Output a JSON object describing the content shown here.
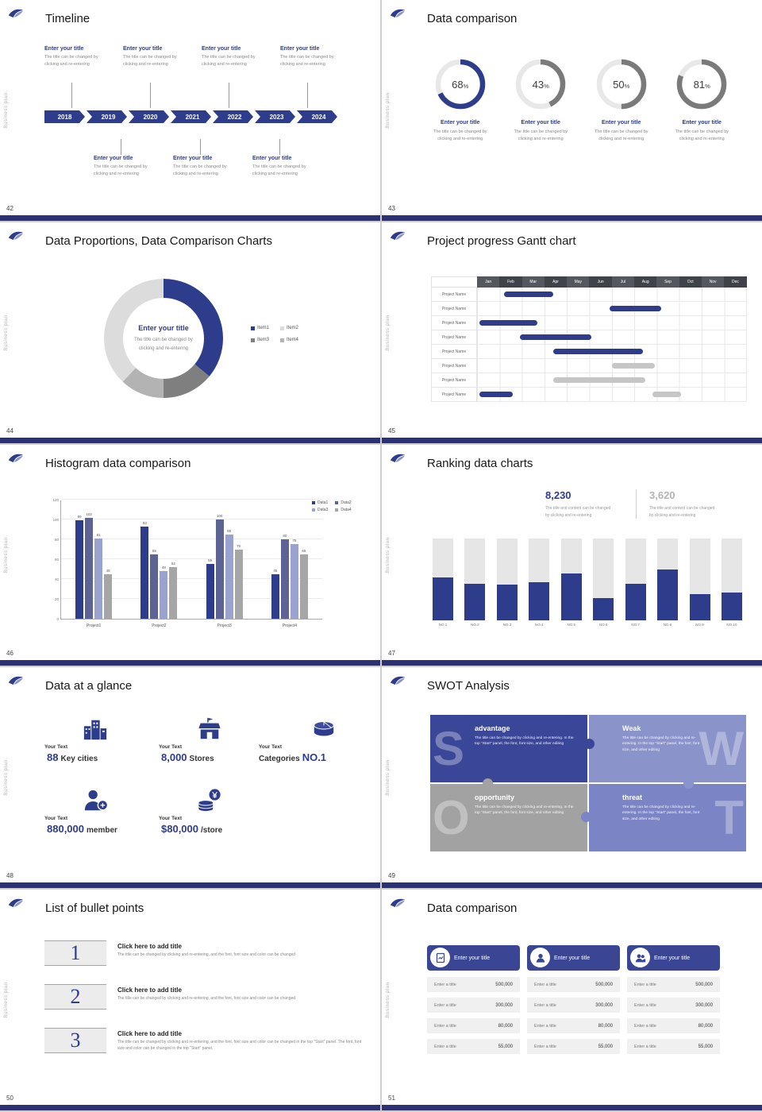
{
  "palette": {
    "accent": "#2e3c8c",
    "accent_bright": "#3a4694",
    "footer_bar": "#2a3176",
    "bar_gray": "#c6c6c6",
    "ring_track": "#e8e8e8",
    "ring_gray": "#7a7a7a",
    "periwinkle": "#8b93cb",
    "swot_gray": "#a2a2a2",
    "swot_blue": "#7b84c4"
  },
  "common": {
    "vertical_text": "Business plan"
  },
  "slides": {
    "timeline": {
      "number": "42",
      "title": "Timeline",
      "item_title": "Enter your title",
      "item_desc": [
        "The title can be changed by",
        "clicking and re-entering"
      ],
      "years": [
        "2018",
        "2019",
        "2020",
        "2021",
        "2022",
        "2023",
        "2024"
      ],
      "top_count": 4,
      "bottom_count": 3
    },
    "rings": {
      "number": "43",
      "title": "Data comparison",
      "item_title": "Enter your title",
      "item_desc": [
        "The title can be changed by",
        "clicking and re-entering"
      ]
    },
    "donut": {
      "number": "44",
      "title": "Data Proportions, Data Comparison Charts",
      "center_title": "Enter your title",
      "center_desc": [
        "The title can be changed by",
        "clicking and re-entering"
      ]
    },
    "gantt": {
      "number": "45",
      "title": "Project progress Gantt chart",
      "row_label": "Project Name"
    },
    "histogram": {
      "number": "46",
      "title": "Histogram data comparison"
    },
    "ranking": {
      "number": "47",
      "title": "Ranking data charts",
      "stats": [
        {
          "value": "8,230"
        },
        {
          "value": "3,620"
        }
      ],
      "stat_desc": [
        "The title and content can be changed",
        "by clicking and re-entering"
      ]
    },
    "glance": {
      "number": "48",
      "title": "Data at a glance",
      "items": [
        {
          "label": "Your Text",
          "prefix": "",
          "big": "88",
          "suffix": "Key cities"
        },
        {
          "label": "Your Text",
          "prefix": "",
          "big": "8,000",
          "suffix": "Stores"
        },
        {
          "label": "Your Text",
          "prefix": "Categories",
          "big": "NO.1",
          "suffix": ""
        },
        {
          "label": "Your Text",
          "prefix": "",
          "big": "880,000",
          "suffix": "member"
        },
        {
          "label": "Your Text",
          "prefix": "",
          "big": "$80,000",
          "suffix": "/store"
        }
      ]
    },
    "swot": {
      "number": "49",
      "title": "SWOT Analysis",
      "quads": [
        {
          "letter": "S",
          "title": "advantage",
          "desc": "The title can be changed by clicking and re-entering. In the top \"Start\" panel, the font, font size, and other editing"
        },
        {
          "letter": "W",
          "title": "Weak",
          "desc": "The title can be changed by clicking and re-entering. In the top \"Start\" panel, the font, font size, and other editing"
        },
        {
          "letter": "O",
          "title": "opportunity",
          "desc": "The title can be changed by clicking and re-entering. In the top \"Start\" panel, the font, font size, and other editing"
        },
        {
          "letter": "T",
          "title": "threat",
          "desc": "The title can be changed by clicking and re-entering. In the top \"Start\" panel, the font, font size, and other editing"
        }
      ]
    },
    "bullets": {
      "number": "50",
      "title": "List of bullet points",
      "items": [
        {
          "num": "1",
          "title": "Click here to add title",
          "desc": "The title can be changed by clicking and re-entering, and the font, font size and color can be changed"
        },
        {
          "num": "2",
          "title": "Click here to add title",
          "desc": "The title can be changed by clicking and re-entering, and the font, font size and color can be changed"
        },
        {
          "num": "3",
          "title": "Click here to add title",
          "desc": "The title can be changed by clicking and re-entering, and the font, font size and color can be changed in the top \"Start\" panel. The font, font size and color can be changed in the top \"Start\" panel."
        }
      ]
    },
    "cards": {
      "number": "51",
      "title": "Data comparison",
      "cards": [
        {
          "icon": "report-icon",
          "title": "Enter your title"
        },
        {
          "icon": "user-icon",
          "title": "Enter your title"
        },
        {
          "icon": "users-icon",
          "title": "Enter your title"
        }
      ],
      "rows": [
        {
          "label": "Enter a title",
          "value": "500,000"
        },
        {
          "label": "Enter a title",
          "value": "300,000"
        },
        {
          "label": "Enter a title",
          "value": "80,000"
        },
        {
          "label": "Enter a title",
          "value": "55,000"
        }
      ]
    }
  },
  "chart_data": {
    "rings": {
      "type": "progress",
      "values_pct": [
        68,
        43,
        50,
        81
      ],
      "colors": [
        "#2e3c8c",
        "#7a7a7a",
        "#7a7a7a",
        "#7a7a7a"
      ],
      "track_color": "#e8e8e8"
    },
    "donut": {
      "type": "pie",
      "segments": [
        {
          "label": "Item1",
          "value": 36,
          "color": "#2e3c8c"
        },
        {
          "label": "Item3",
          "value": 14,
          "color": "#7f7f7f"
        },
        {
          "label": "Item4",
          "value": 12,
          "color": "#b3b3b3"
        },
        {
          "label": "Item2",
          "value": 38,
          "color": "#dcdcdc"
        }
      ],
      "legend_order": [
        "Item1",
        "Item2",
        "Item3",
        "Item4"
      ]
    },
    "gantt": {
      "type": "gantt",
      "months": [
        "Jan",
        "Feb",
        "Mar",
        "Apr",
        "May",
        "Jun",
        "Jul",
        "Aug",
        "Sep",
        "Oct",
        "Nov",
        "Dec"
      ],
      "row_count": 8,
      "bars": [
        {
          "row": 0,
          "start": 1.2,
          "end": 3.4,
          "color": "#2e3c8c"
        },
        {
          "row": 1,
          "start": 5.9,
          "end": 8.2,
          "color": "#2e3c8c"
        },
        {
          "row": 2,
          "start": 0.1,
          "end": 2.7,
          "color": "#2e3c8c"
        },
        {
          "row": 3,
          "start": 1.9,
          "end": 5.1,
          "color": "#2e3c8c"
        },
        {
          "row": 4,
          "start": 3.4,
          "end": 7.4,
          "color": "#2e3c8c"
        },
        {
          "row": 5,
          "start": 6.0,
          "end": 7.9,
          "color": "#c6c6c6"
        },
        {
          "row": 6,
          "start": 3.4,
          "end": 7.5,
          "color": "#c6c6c6"
        },
        {
          "row": 7,
          "start": 0.1,
          "end": 1.6,
          "color": "#2e3c8c"
        },
        {
          "row": 7,
          "start": 7.8,
          "end": 9.1,
          "color": "#c6c6c6"
        }
      ]
    },
    "histogram": {
      "type": "bar",
      "categories": [
        "Project1",
        "Project2",
        "Project3",
        "Project4"
      ],
      "series": [
        {
          "name": "Data1",
          "color": "#2e3c8c",
          "values": [
            99,
            93,
            55,
            45
          ]
        },
        {
          "name": "Data2",
          "color": "#5d6493",
          "values": [
            102,
            65,
            100,
            80
          ]
        },
        {
          "name": "Data3",
          "color": "#9aa3d0",
          "values": [
            81,
            48,
            85,
            75
          ]
        },
        {
          "name": "Data4",
          "color": "#a6a6a6",
          "values": [
            45,
            52,
            70,
            65
          ]
        }
      ],
      "ylim": [
        0,
        120
      ],
      "yticks": [
        0,
        20,
        40,
        60,
        80,
        100,
        120
      ]
    },
    "ranking": {
      "type": "bar",
      "categories": [
        "NO.1",
        "NO.2",
        "NO.3",
        "NO.4",
        "NO.5",
        "NO.6",
        "NO.7",
        "NO.8",
        "NO.9",
        "NO.10"
      ],
      "values_pct": [
        52,
        45,
        44,
        47,
        57,
        27,
        45,
        62,
        32,
        34
      ],
      "fill_color": "#2e3c8c",
      "track_color": "#e6e6e6"
    }
  }
}
